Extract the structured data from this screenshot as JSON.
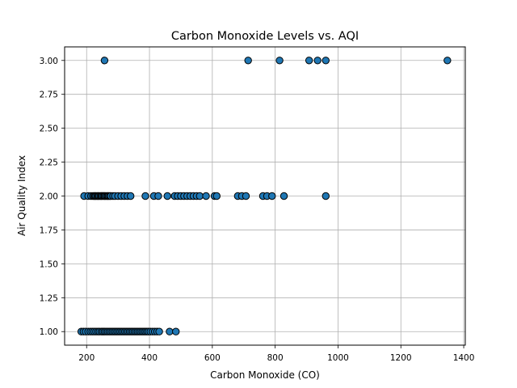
{
  "chart_data": {
    "type": "scatter",
    "title": "Carbon Monoxide Levels vs. AQI",
    "xlabel": "Carbon Monoxide (CO)",
    "ylabel": "Air Quality Index",
    "xlim": [
      130,
      1405
    ],
    "ylim": [
      0.9,
      3.1
    ],
    "xticks": [
      200,
      400,
      600,
      800,
      1000,
      1200,
      1400
    ],
    "xtick_labels": [
      "200",
      "400",
      "600",
      "800",
      "1000",
      "1200",
      "1400"
    ],
    "yticks": [
      1.0,
      1.25,
      1.5,
      1.75,
      2.0,
      2.25,
      2.5,
      2.75,
      3.0
    ],
    "ytick_labels": [
      "1.00",
      "1.25",
      "1.50",
      "1.75",
      "2.00",
      "2.25",
      "2.50",
      "2.75",
      "3.00"
    ],
    "grid": true,
    "marker_color": "#1f77b4",
    "marker_edge_color": "#000000",
    "series": [
      {
        "points": [
          {
            "x": 257,
            "y": 3
          },
          {
            "x": 714,
            "y": 3
          },
          {
            "x": 814,
            "y": 3
          },
          {
            "x": 908,
            "y": 3
          },
          {
            "x": 935,
            "y": 3
          },
          {
            "x": 961,
            "y": 3
          },
          {
            "x": 1348,
            "y": 3
          },
          {
            "x": 192,
            "y": 2
          },
          {
            "x": 205,
            "y": 2
          },
          {
            "x": 214,
            "y": 2
          },
          {
            "x": 220,
            "y": 2
          },
          {
            "x": 224,
            "y": 2
          },
          {
            "x": 227,
            "y": 2
          },
          {
            "x": 230,
            "y": 2
          },
          {
            "x": 234,
            "y": 2
          },
          {
            "x": 237,
            "y": 2
          },
          {
            "x": 240,
            "y": 2
          },
          {
            "x": 244,
            "y": 2
          },
          {
            "x": 247,
            "y": 2
          },
          {
            "x": 250,
            "y": 2
          },
          {
            "x": 254,
            "y": 2
          },
          {
            "x": 257,
            "y": 2
          },
          {
            "x": 260,
            "y": 2
          },
          {
            "x": 264,
            "y": 2
          },
          {
            "x": 267,
            "y": 2
          },
          {
            "x": 270,
            "y": 2
          },
          {
            "x": 274,
            "y": 2
          },
          {
            "x": 277,
            "y": 2
          },
          {
            "x": 284,
            "y": 2
          },
          {
            "x": 290,
            "y": 2
          },
          {
            "x": 300,
            "y": 2
          },
          {
            "x": 310,
            "y": 2
          },
          {
            "x": 320,
            "y": 2
          },
          {
            "x": 330,
            "y": 2
          },
          {
            "x": 340,
            "y": 2
          },
          {
            "x": 387,
            "y": 2
          },
          {
            "x": 414,
            "y": 2
          },
          {
            "x": 428,
            "y": 2
          },
          {
            "x": 457,
            "y": 2
          },
          {
            "x": 480,
            "y": 2
          },
          {
            "x": 490,
            "y": 2
          },
          {
            "x": 500,
            "y": 2
          },
          {
            "x": 510,
            "y": 2
          },
          {
            "x": 520,
            "y": 2
          },
          {
            "x": 530,
            "y": 2
          },
          {
            "x": 540,
            "y": 2
          },
          {
            "x": 550,
            "y": 2
          },
          {
            "x": 560,
            "y": 2
          },
          {
            "x": 580,
            "y": 2
          },
          {
            "x": 607,
            "y": 2
          },
          {
            "x": 614,
            "y": 2
          },
          {
            "x": 681,
            "y": 2
          },
          {
            "x": 694,
            "y": 2
          },
          {
            "x": 707,
            "y": 2
          },
          {
            "x": 761,
            "y": 2
          },
          {
            "x": 774,
            "y": 2
          },
          {
            "x": 790,
            "y": 2
          },
          {
            "x": 828,
            "y": 2
          },
          {
            "x": 961,
            "y": 2
          },
          {
            "x": 183,
            "y": 1
          },
          {
            "x": 190,
            "y": 1
          },
          {
            "x": 197,
            "y": 1
          },
          {
            "x": 205,
            "y": 1
          },
          {
            "x": 212,
            "y": 1
          },
          {
            "x": 218,
            "y": 1
          },
          {
            "x": 224,
            "y": 1
          },
          {
            "x": 230,
            "y": 1
          },
          {
            "x": 236,
            "y": 1
          },
          {
            "x": 241,
            "y": 1
          },
          {
            "x": 247,
            "y": 1
          },
          {
            "x": 252,
            "y": 1
          },
          {
            "x": 257,
            "y": 1
          },
          {
            "x": 262,
            "y": 1
          },
          {
            "x": 267,
            "y": 1
          },
          {
            "x": 272,
            "y": 1
          },
          {
            "x": 277,
            "y": 1
          },
          {
            "x": 282,
            "y": 1
          },
          {
            "x": 287,
            "y": 1
          },
          {
            "x": 292,
            "y": 1
          },
          {
            "x": 297,
            "y": 1
          },
          {
            "x": 302,
            "y": 1
          },
          {
            "x": 307,
            "y": 1
          },
          {
            "x": 312,
            "y": 1
          },
          {
            "x": 317,
            "y": 1
          },
          {
            "x": 322,
            "y": 1
          },
          {
            "x": 327,
            "y": 1
          },
          {
            "x": 332,
            "y": 1
          },
          {
            "x": 337,
            "y": 1
          },
          {
            "x": 342,
            "y": 1
          },
          {
            "x": 347,
            "y": 1
          },
          {
            "x": 352,
            "y": 1
          },
          {
            "x": 357,
            "y": 1
          },
          {
            "x": 362,
            "y": 1
          },
          {
            "x": 367,
            "y": 1
          },
          {
            "x": 372,
            "y": 1
          },
          {
            "x": 377,
            "y": 1
          },
          {
            "x": 382,
            "y": 1
          },
          {
            "x": 387,
            "y": 1
          },
          {
            "x": 392,
            "y": 1
          },
          {
            "x": 397,
            "y": 1
          },
          {
            "x": 403,
            "y": 1
          },
          {
            "x": 410,
            "y": 1
          },
          {
            "x": 417,
            "y": 1
          },
          {
            "x": 424,
            "y": 1
          },
          {
            "x": 431,
            "y": 1
          },
          {
            "x": 464,
            "y": 1
          },
          {
            "x": 484,
            "y": 1
          }
        ]
      }
    ]
  }
}
